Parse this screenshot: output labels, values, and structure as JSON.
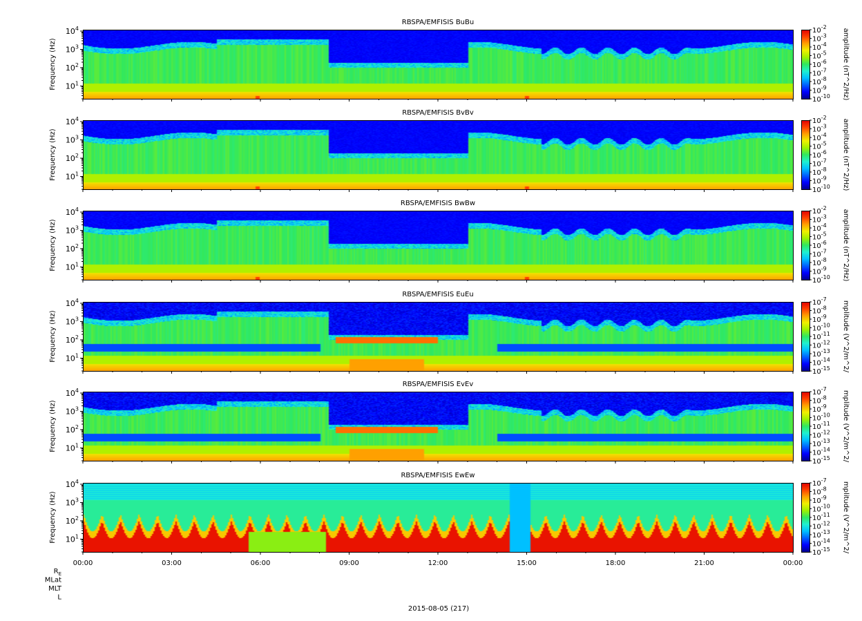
{
  "chart_data": [
    {
      "type": "heatmap",
      "title": "RBSPA/EMFISIS  BuBu",
      "ylabel": "Frequency (Hz)",
      "y_scale": "log",
      "ylim": [
        2,
        12000
      ],
      "y_ticks": [
        {
          "value": 10,
          "base": "10",
          "exp": "1"
        },
        {
          "value": 100,
          "base": "10",
          "exp": "2"
        },
        {
          "value": 1000,
          "base": "10",
          "exp": "3"
        },
        {
          "value": 10000,
          "base": "10",
          "exp": "4"
        }
      ],
      "colorbar": {
        "label": "amplitude (nT^2/Hz)",
        "scale": "log",
        "range": [
          1e-10,
          0.01
        ],
        "ticks": [
          {
            "base": "10",
            "exp": "-2"
          },
          {
            "base": "10",
            "exp": "-3"
          },
          {
            "base": "10",
            "exp": "-4"
          },
          {
            "base": "10",
            "exp": "-5"
          },
          {
            "base": "10",
            "exp": "-6"
          },
          {
            "base": "10",
            "exp": "-7"
          },
          {
            "base": "10",
            "exp": "-8"
          },
          {
            "base": "10",
            "exp": "-9"
          },
          {
            "base": "10",
            "exp": "-10"
          }
        ]
      }
    },
    {
      "type": "heatmap",
      "title": "RBSPA/EMFISIS  BvBv",
      "ylabel": "Frequency (Hz)",
      "y_scale": "log",
      "ylim": [
        2,
        12000
      ],
      "y_ticks": [
        {
          "value": 10,
          "base": "10",
          "exp": "1"
        },
        {
          "value": 100,
          "base": "10",
          "exp": "2"
        },
        {
          "value": 1000,
          "base": "10",
          "exp": "3"
        },
        {
          "value": 10000,
          "base": "10",
          "exp": "4"
        }
      ],
      "colorbar": {
        "label": "amplitude (nT^2/Hz)",
        "scale": "log",
        "range": [
          1e-10,
          0.01
        ],
        "ticks": [
          {
            "base": "10",
            "exp": "-2"
          },
          {
            "base": "10",
            "exp": "-3"
          },
          {
            "base": "10",
            "exp": "-4"
          },
          {
            "base": "10",
            "exp": "-5"
          },
          {
            "base": "10",
            "exp": "-6"
          },
          {
            "base": "10",
            "exp": "-7"
          },
          {
            "base": "10",
            "exp": "-8"
          },
          {
            "base": "10",
            "exp": "-9"
          },
          {
            "base": "10",
            "exp": "-10"
          }
        ]
      }
    },
    {
      "type": "heatmap",
      "title": "RBSPA/EMFISIS  BwBw",
      "ylabel": "Frequency (Hz)",
      "y_scale": "log",
      "ylim": [
        2,
        12000
      ],
      "y_ticks": [
        {
          "value": 10,
          "base": "10",
          "exp": "1"
        },
        {
          "value": 100,
          "base": "10",
          "exp": "2"
        },
        {
          "value": 1000,
          "base": "10",
          "exp": "3"
        },
        {
          "value": 10000,
          "base": "10",
          "exp": "4"
        }
      ],
      "colorbar": {
        "label": "amplitude (nT^2/Hz)",
        "scale": "log",
        "range": [
          1e-10,
          0.01
        ],
        "ticks": [
          {
            "base": "10",
            "exp": "-2"
          },
          {
            "base": "10",
            "exp": "-3"
          },
          {
            "base": "10",
            "exp": "-4"
          },
          {
            "base": "10",
            "exp": "-5"
          },
          {
            "base": "10",
            "exp": "-6"
          },
          {
            "base": "10",
            "exp": "-7"
          },
          {
            "base": "10",
            "exp": "-8"
          },
          {
            "base": "10",
            "exp": "-9"
          },
          {
            "base": "10",
            "exp": "-10"
          }
        ]
      }
    },
    {
      "type": "heatmap",
      "title": "RBSPA/EMFISIS  EuEu",
      "ylabel": "Frequency (Hz)",
      "y_scale": "log",
      "ylim": [
        2,
        12000
      ],
      "y_ticks": [
        {
          "value": 10,
          "base": "10",
          "exp": "1"
        },
        {
          "value": 100,
          "base": "10",
          "exp": "2"
        },
        {
          "value": 1000,
          "base": "10",
          "exp": "3"
        },
        {
          "value": 10000,
          "base": "10",
          "exp": "4"
        }
      ],
      "colorbar": {
        "label": "mplitude (V^2/m^2/",
        "scale": "log",
        "range": [
          1e-15,
          1e-07
        ],
        "ticks": [
          {
            "base": "10",
            "exp": "-7"
          },
          {
            "base": "10",
            "exp": "-8"
          },
          {
            "base": "10",
            "exp": "-9"
          },
          {
            "base": "10",
            "exp": "-10"
          },
          {
            "base": "10",
            "exp": "-11"
          },
          {
            "base": "10",
            "exp": "-12"
          },
          {
            "base": "10",
            "exp": "-13"
          },
          {
            "base": "10",
            "exp": "-14"
          },
          {
            "base": "10",
            "exp": "-15"
          }
        ]
      }
    },
    {
      "type": "heatmap",
      "title": "RBSPA/EMFISIS  EvEv",
      "ylabel": "Frequency (Hz)",
      "y_scale": "log",
      "ylim": [
        2,
        12000
      ],
      "y_ticks": [
        {
          "value": 10,
          "base": "10",
          "exp": "1"
        },
        {
          "value": 100,
          "base": "10",
          "exp": "2"
        },
        {
          "value": 1000,
          "base": "10",
          "exp": "3"
        },
        {
          "value": 10000,
          "base": "10",
          "exp": "4"
        }
      ],
      "colorbar": {
        "label": "mplitude (V^2/m^2/",
        "scale": "log",
        "range": [
          1e-15,
          1e-07
        ],
        "ticks": [
          {
            "base": "10",
            "exp": "-7"
          },
          {
            "base": "10",
            "exp": "-8"
          },
          {
            "base": "10",
            "exp": "-9"
          },
          {
            "base": "10",
            "exp": "-10"
          },
          {
            "base": "10",
            "exp": "-11"
          },
          {
            "base": "10",
            "exp": "-12"
          },
          {
            "base": "10",
            "exp": "-13"
          },
          {
            "base": "10",
            "exp": "-14"
          },
          {
            "base": "10",
            "exp": "-15"
          }
        ]
      }
    },
    {
      "type": "heatmap",
      "title": "RBSPA/EMFISIS  EwEw",
      "ylabel": "Frequency (Hz)",
      "y_scale": "log",
      "ylim": [
        2,
        12000
      ],
      "y_ticks": [
        {
          "value": 10,
          "base": "10",
          "exp": "1"
        },
        {
          "value": 100,
          "base": "10",
          "exp": "2"
        },
        {
          "value": 1000,
          "base": "10",
          "exp": "3"
        },
        {
          "value": 10000,
          "base": "10",
          "exp": "4"
        }
      ],
      "colorbar": {
        "label": "mplitude (V^2/m^2/",
        "scale": "log",
        "range": [
          1e-15,
          1e-07
        ],
        "ticks": [
          {
            "base": "10",
            "exp": "-7"
          },
          {
            "base": "10",
            "exp": "-8"
          },
          {
            "base": "10",
            "exp": "-9"
          },
          {
            "base": "10",
            "exp": "-10"
          },
          {
            "base": "10",
            "exp": "-11"
          },
          {
            "base": "10",
            "exp": "-12"
          },
          {
            "base": "10",
            "exp": "-13"
          },
          {
            "base": "10",
            "exp": "-14"
          },
          {
            "base": "10",
            "exp": "-15"
          }
        ]
      }
    }
  ],
  "x_axis": {
    "range_hours": [
      0,
      24
    ],
    "tick_labels": [
      {
        "hour": 0,
        "label": "00:00"
      },
      {
        "hour": 3,
        "label": "03:00"
      },
      {
        "hour": 6,
        "label": "06:00"
      },
      {
        "hour": 9,
        "label": "09:00"
      },
      {
        "hour": 12,
        "label": "12:00"
      },
      {
        "hour": 15,
        "label": "15:00"
      },
      {
        "hour": 18,
        "label": "18:00"
      },
      {
        "hour": 21,
        "label": "21:00"
      },
      {
        "hour": 24,
        "label": "00:00"
      }
    ],
    "minor_tick_step_hours": 1,
    "ephemeris_rows": [
      {
        "label": "R",
        "sub": "E"
      },
      {
        "label": "MLat",
        "sub": ""
      },
      {
        "label": "MLT",
        "sub": ""
      },
      {
        "label": "L",
        "sub": ""
      }
    ],
    "date_label": "2015-08-05 (217)"
  },
  "colors": {
    "spectrogram_scale": [
      "#000090",
      "#0000ff",
      "#0060ff",
      "#00c0ff",
      "#20f0d0",
      "#30e860",
      "#a0f000",
      "#f0f000",
      "#ffa000",
      "#ff4000",
      "#e00000"
    ],
    "background_low": "#00008c"
  }
}
